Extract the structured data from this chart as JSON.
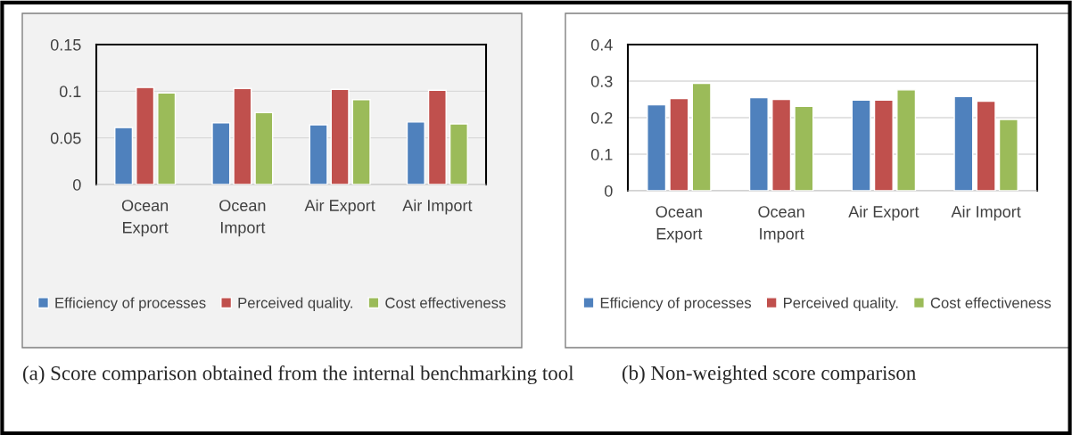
{
  "chart_data": [
    {
      "type": "bar",
      "categories": [
        "Ocean Export",
        "Ocean Import",
        "Air Export",
        "Air Import"
      ],
      "ylim": [
        0,
        0.15
      ],
      "yticks": [
        0,
        0.05,
        0.1,
        0.15
      ],
      "grid": "y",
      "legend": "bottom",
      "series": [
        {
          "name": "Efficiency of processes",
          "color": "#4f81bd",
          "values": [
            0.061,
            0.066,
            0.064,
            0.067
          ]
        },
        {
          "name": "Perceived quality.",
          "color": "#c0504d",
          "values": [
            0.104,
            0.103,
            0.102,
            0.101
          ]
        },
        {
          "name": "Cost effectiveness",
          "color": "#9bbb59",
          "values": [
            0.098,
            0.077,
            0.091,
            0.065
          ]
        }
      ],
      "annotations": [
        "(a) Score comparison obtained from the internal benchmarking tool"
      ]
    },
    {
      "type": "bar",
      "categories": [
        "Ocean Export",
        "Ocean Import",
        "Air Export",
        "Air Import"
      ],
      "ylim": [
        0,
        0.4
      ],
      "yticks": [
        0,
        0.1,
        0.2,
        0.3,
        0.4
      ],
      "grid": "y",
      "legend": "bottom",
      "series": [
        {
          "name": "Efficiency of processes",
          "color": "#4f81bd",
          "values": [
            0.235,
            0.255,
            0.248,
            0.258
          ]
        },
        {
          "name": "Perceived quality.",
          "color": "#c0504d",
          "values": [
            0.252,
            0.25,
            0.248,
            0.245
          ]
        },
        {
          "name": "Cost effectiveness",
          "color": "#9bbb59",
          "values": [
            0.294,
            0.231,
            0.276,
            0.195
          ]
        }
      ],
      "annotations": [
        "(b) Non-weighted score comparison"
      ]
    }
  ]
}
